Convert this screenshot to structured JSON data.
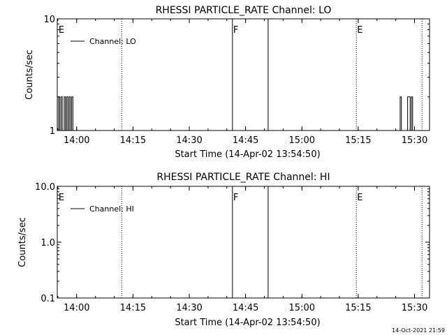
{
  "footer": {
    "timestamp": "14-Oct-2021 21:59"
  },
  "chart_data": [
    {
      "type": "line",
      "title": "RHESSI PARTICLE_RATE Channel: LO",
      "xlabel": "Start Time (14-Apr-02 13:54:50)",
      "ylabel": "Counts/sec",
      "y_scale": "log",
      "ylim": [
        1,
        10
      ],
      "ytick_labels": [
        "1",
        "10"
      ],
      "xlim": [
        "13:54:50",
        "15:34:00"
      ],
      "xtick_labels": [
        "14:00",
        "14:15",
        "14:30",
        "14:45",
        "15:00",
        "15:15",
        "15:30"
      ],
      "legend": {
        "label": "Channel: LO",
        "placement": "top-left"
      },
      "grid": false,
      "markers": [
        {
          "time": "13:55:00",
          "style": "none",
          "label": "E"
        },
        {
          "time": "14:12:00",
          "style": "dotted",
          "label": ""
        },
        {
          "time": "14:41:30",
          "style": "solid",
          "label": "F"
        },
        {
          "time": "14:51:00",
          "style": "solid",
          "label": ""
        },
        {
          "time": "15:14:30",
          "style": "dotted",
          "label": "E"
        },
        {
          "time": "15:32:00",
          "style": "dotted",
          "label": ""
        }
      ],
      "series": [
        {
          "name": "Channel: LO",
          "points": [
            [
              "13:54:50",
              1
            ],
            [
              "13:55:10",
              2
            ],
            [
              "13:55:30",
              1
            ],
            [
              "13:55:50",
              2
            ],
            [
              "13:56:10",
              1
            ],
            [
              "13:56:40",
              2
            ],
            [
              "13:57:00",
              1
            ],
            [
              "13:57:20",
              2
            ],
            [
              "13:57:40",
              1
            ],
            [
              "13:58:00",
              2
            ],
            [
              "13:58:20",
              1
            ],
            [
              "13:58:40",
              2
            ],
            [
              "13:59:00",
              1
            ],
            [
              "13:59:20",
              1
            ],
            [
              "15:25:50",
              1
            ],
            [
              "15:26:10",
              2
            ],
            [
              "15:26:30",
              1
            ],
            [
              "15:27:50",
              1
            ],
            [
              "15:28:10",
              2
            ],
            [
              "15:28:30",
              2
            ],
            [
              "15:28:50",
              1
            ],
            [
              "15:29:10",
              2
            ],
            [
              "15:29:30",
              1
            ],
            [
              "15:29:50",
              1
            ]
          ]
        }
      ]
    },
    {
      "type": "line",
      "title": "RHESSI PARTICLE_RATE Channel: HI",
      "xlabel": "Start Time (14-Apr-02 13:54:50)",
      "ylabel": "Counts/sec",
      "y_scale": "log",
      "ylim": [
        0.1,
        10
      ],
      "ytick_labels": [
        "0.1",
        "1.0",
        "10.0"
      ],
      "xlim": [
        "13:54:50",
        "15:34:00"
      ],
      "xtick_labels": [
        "14:00",
        "14:15",
        "14:30",
        "14:45",
        "15:00",
        "15:15",
        "15:30"
      ],
      "legend": {
        "label": "Channel: HI",
        "placement": "top-left"
      },
      "grid": false,
      "markers": [
        {
          "time": "13:55:00",
          "style": "none",
          "label": "E"
        },
        {
          "time": "14:12:00",
          "style": "dotted",
          "label": ""
        },
        {
          "time": "14:41:30",
          "style": "solid",
          "label": "F"
        },
        {
          "time": "14:51:00",
          "style": "solid",
          "label": ""
        },
        {
          "time": "15:14:30",
          "style": "dotted",
          "label": "E"
        },
        {
          "time": "15:32:00",
          "style": "dotted",
          "label": ""
        }
      ],
      "series": [
        {
          "name": "Channel: HI",
          "points": []
        }
      ]
    }
  ]
}
